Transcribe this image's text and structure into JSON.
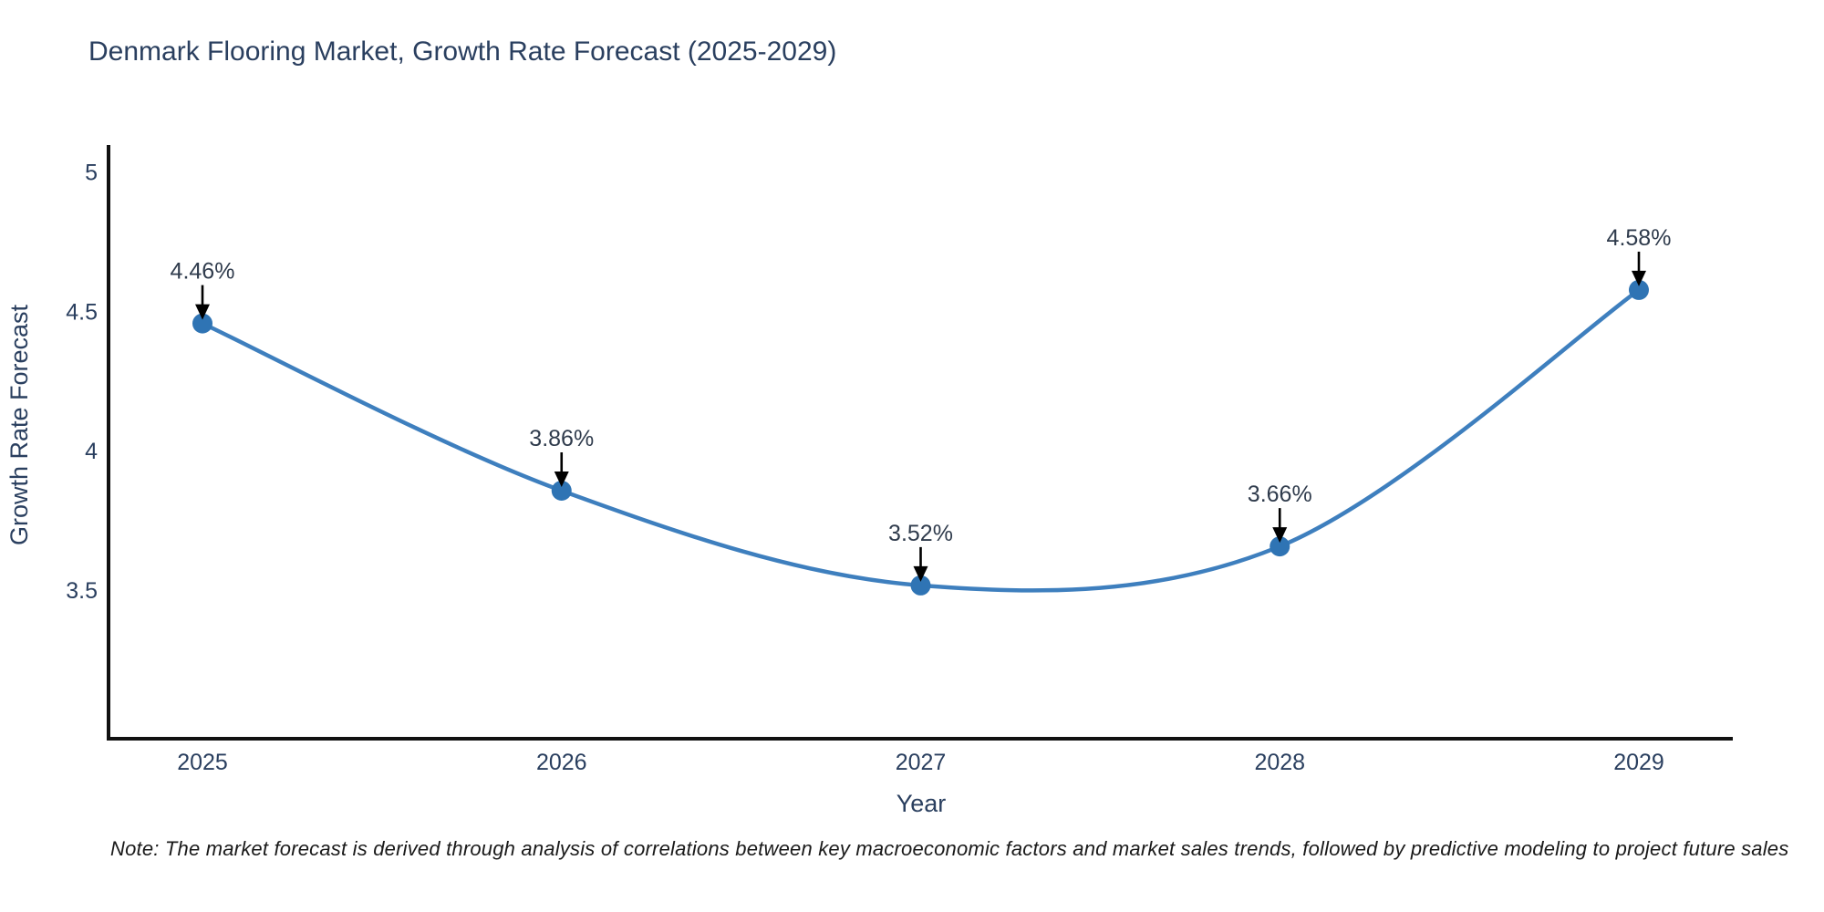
{
  "chart_data": {
    "type": "line",
    "title": "Denmark Flooring Market, Growth Rate Forecast (2025-2029)",
    "xlabel": "Year",
    "ylabel": "Growth Rate Forecast",
    "categories": [
      "2025",
      "2026",
      "2027",
      "2028",
      "2029"
    ],
    "series": [
      {
        "name": "Growth Rate Forecast",
        "values": [
          4.46,
          3.86,
          3.52,
          3.66,
          4.58
        ],
        "point_labels": [
          "4.46%",
          "3.86%",
          "3.52%",
          "3.66%",
          "4.58%"
        ]
      }
    ],
    "line_shape": "spline",
    "markers": true,
    "annotations_with_arrows": true,
    "ylim": [
      2.97,
      5.1
    ],
    "yticks": [
      5,
      4.5,
      4,
      3.5
    ],
    "ytick_labels": [
      "5",
      "4.5",
      "4",
      "3.5"
    ],
    "grid": false,
    "legend_position": "none",
    "colors": {
      "line": "#3e7fbe",
      "marker": "#2f74b4",
      "arrow": "#000000",
      "title_text": "#2a3f5f",
      "tick_text": "#2a3f5f",
      "annotation_text": "#2f3b4c",
      "axis_line": "#111111",
      "background": "#ffffff"
    }
  },
  "note": {
    "text": "Note: The market forecast is derived through analysis of correlations between key macroeconomic factors and market sales trends, followed by predictive modeling to project future sales"
  }
}
